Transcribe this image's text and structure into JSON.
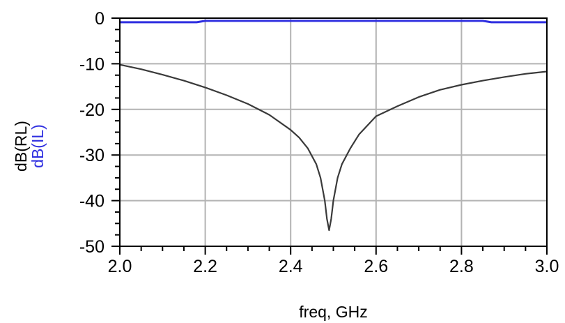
{
  "chart_data": {
    "type": "line",
    "xlabel": "freq, GHz",
    "ylabels": [
      {
        "text": "dB(RL)",
        "color": "#000000"
      },
      {
        "text": "dB(IL)",
        "color": "#2f2fe0"
      }
    ],
    "xlim": [
      2.0,
      3.0
    ],
    "ylim": [
      -50,
      0
    ],
    "xticks": [
      2.0,
      2.2,
      2.4,
      2.6,
      2.8,
      3.0
    ],
    "xtick_labels": [
      "2.0",
      "2.2",
      "2.4",
      "2.6",
      "2.8",
      "3.0"
    ],
    "yticks": [
      0,
      -10,
      -20,
      -30,
      -40,
      -50
    ],
    "ytick_labels": [
      "0",
      "-10",
      "-20",
      "-30",
      "-40",
      "-50"
    ],
    "grid": true,
    "series": [
      {
        "color": "#2f2fe0",
        "x": [
          2.0,
          2.18,
          2.2,
          2.85,
          2.87,
          3.0
        ],
        "y": [
          -0.9,
          -0.9,
          -0.6,
          -0.6,
          -0.9,
          -0.9
        ]
      },
      {
        "color": "#3a3a3a",
        "x": [
          2.0,
          2.05,
          2.1,
          2.15,
          2.2,
          2.25,
          2.3,
          2.35,
          2.4,
          2.42,
          2.44,
          2.46,
          2.47,
          2.48,
          2.485,
          2.49,
          2.495,
          2.5,
          2.51,
          2.52,
          2.54,
          2.56,
          2.58,
          2.6,
          2.65,
          2.7,
          2.75,
          2.8,
          2.85,
          2.9,
          2.95,
          3.0
        ],
        "y": [
          -10.2,
          -11.2,
          -12.4,
          -13.7,
          -15.2,
          -16.9,
          -18.8,
          -21.2,
          -24.5,
          -26.2,
          -28.5,
          -32.0,
          -35.0,
          -40.0,
          -44.0,
          -46.5,
          -44.0,
          -40.0,
          -35.0,
          -32.0,
          -28.5,
          -25.5,
          -23.5,
          -21.5,
          -19.3,
          -17.3,
          -15.7,
          -14.6,
          -13.7,
          -12.9,
          -12.2,
          -11.7
        ]
      }
    ]
  }
}
